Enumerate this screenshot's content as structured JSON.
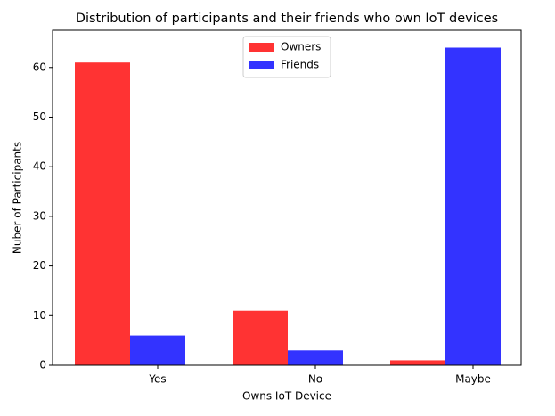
{
  "chart_data": {
    "type": "bar",
    "title": "Distribution of participants and their friends who own IoT devices",
    "x_label": "Owns IoT Device",
    "y_label": "Nuber of Participants",
    "categories": [
      "Yes",
      "No",
      "Maybe"
    ],
    "series": [
      {
        "name": "Owners",
        "color": "#ff3333",
        "values": [
          61,
          11,
          1
        ]
      },
      {
        "name": "Friends",
        "color": "#3333ff",
        "values": [
          6,
          3,
          64
        ]
      }
    ],
    "ylim": [
      0,
      67.5
    ],
    "yticks": [
      0,
      10,
      20,
      30,
      40,
      50,
      60
    ],
    "legend": "upper center"
  }
}
